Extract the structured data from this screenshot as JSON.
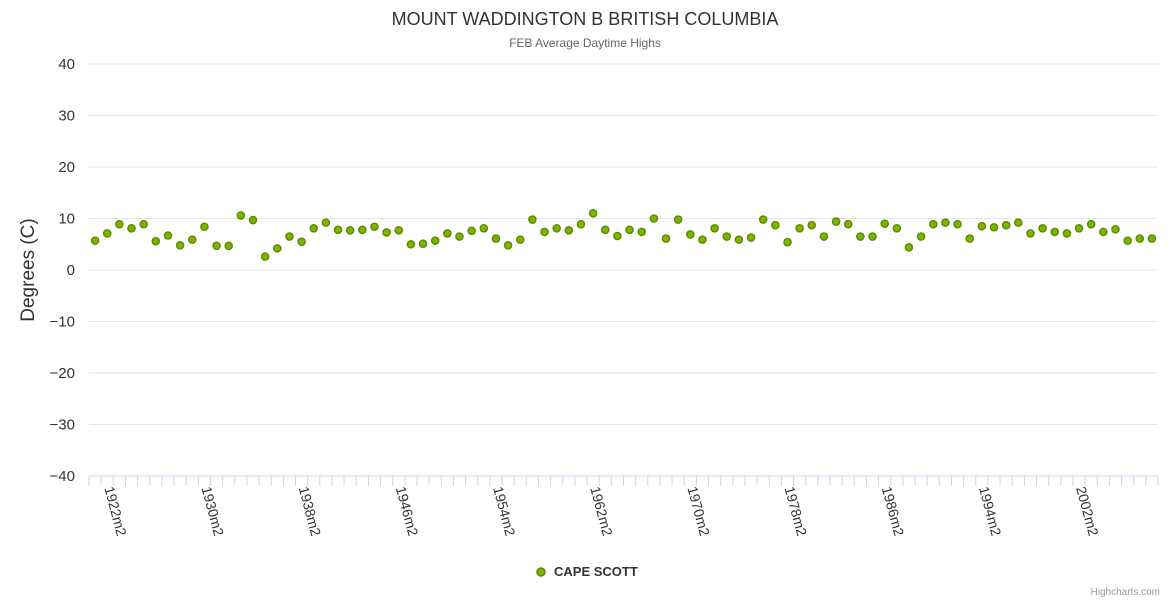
{
  "chart_data": {
    "type": "scatter",
    "title": "MOUNT WADDINGTON B BRITISH COLUMBIA",
    "subtitle": "FEB Average Daytime Highs",
    "ylabel": "Degrees (C)",
    "xlabel": "",
    "ylim": [
      -40,
      40
    ],
    "yticks": [
      40,
      30,
      20,
      10,
      0,
      -10,
      -20,
      -30,
      -40
    ],
    "xticks": [
      "1922m2",
      "1930m2",
      "1938m2",
      "1946m2",
      "1954m2",
      "1962m2",
      "1970m2",
      "1978m2",
      "1986m2",
      "1994m2",
      "2002m2"
    ],
    "x_start_year": 1921,
    "x_end_year": 2008,
    "grid": true,
    "legend": "bottom-center",
    "series": [
      {
        "name": "CAPE SCOTT",
        "color": "#7cb500",
        "x": [
          1921,
          1922,
          1923,
          1924,
          1925,
          1926,
          1927,
          1928,
          1929,
          1930,
          1931,
          1932,
          1933,
          1934,
          1935,
          1936,
          1937,
          1938,
          1939,
          1940,
          1941,
          1942,
          1943,
          1944,
          1945,
          1946,
          1947,
          1948,
          1949,
          1950,
          1951,
          1952,
          1953,
          1954,
          1955,
          1956,
          1957,
          1958,
          1959,
          1960,
          1961,
          1962,
          1963,
          1964,
          1965,
          1966,
          1967,
          1968,
          1969,
          1970,
          1971,
          1972,
          1973,
          1974,
          1975,
          1976,
          1977,
          1978,
          1979,
          1980,
          1981,
          1982,
          1983,
          1984,
          1985,
          1986,
          1987,
          1988,
          1989,
          1990,
          1991,
          1992,
          1993,
          1994,
          1995,
          1996,
          1997,
          1998,
          1999,
          2000,
          2001,
          2002,
          2003,
          2004,
          2005,
          2006,
          2007,
          2008
        ],
        "values": [
          5.7,
          7.1,
          8.9,
          8.1,
          8.9,
          5.6,
          6.7,
          4.8,
          5.9,
          8.4,
          4.7,
          4.7,
          10.6,
          9.7,
          2.6,
          4.2,
          6.5,
          5.5,
          8.1,
          9.2,
          7.8,
          7.7,
          7.8,
          8.4,
          7.3,
          7.7,
          5.0,
          5.1,
          5.7,
          7.1,
          6.5,
          7.6,
          8.1,
          6.1,
          4.8,
          5.9,
          9.8,
          7.4,
          8.1,
          7.7,
          8.9,
          11.0,
          7.8,
          6.6,
          7.8,
          7.4,
          10.0,
          6.1,
          9.8,
          6.9,
          5.9,
          8.1,
          6.5,
          5.9,
          6.3,
          9.8,
          8.7,
          5.4,
          8.1,
          8.7,
          6.5,
          9.4,
          8.9,
          6.5,
          6.5,
          9.0,
          8.1,
          4.4,
          6.5,
          8.9,
          9.2,
          8.9,
          6.1,
          8.5,
          8.3,
          8.7,
          9.2,
          7.1,
          8.1,
          7.4,
          7.1,
          8.1,
          8.9,
          7.4,
          7.9,
          5.7,
          6.1,
          6.1
        ]
      }
    ]
  },
  "credits": "Highcharts.com"
}
